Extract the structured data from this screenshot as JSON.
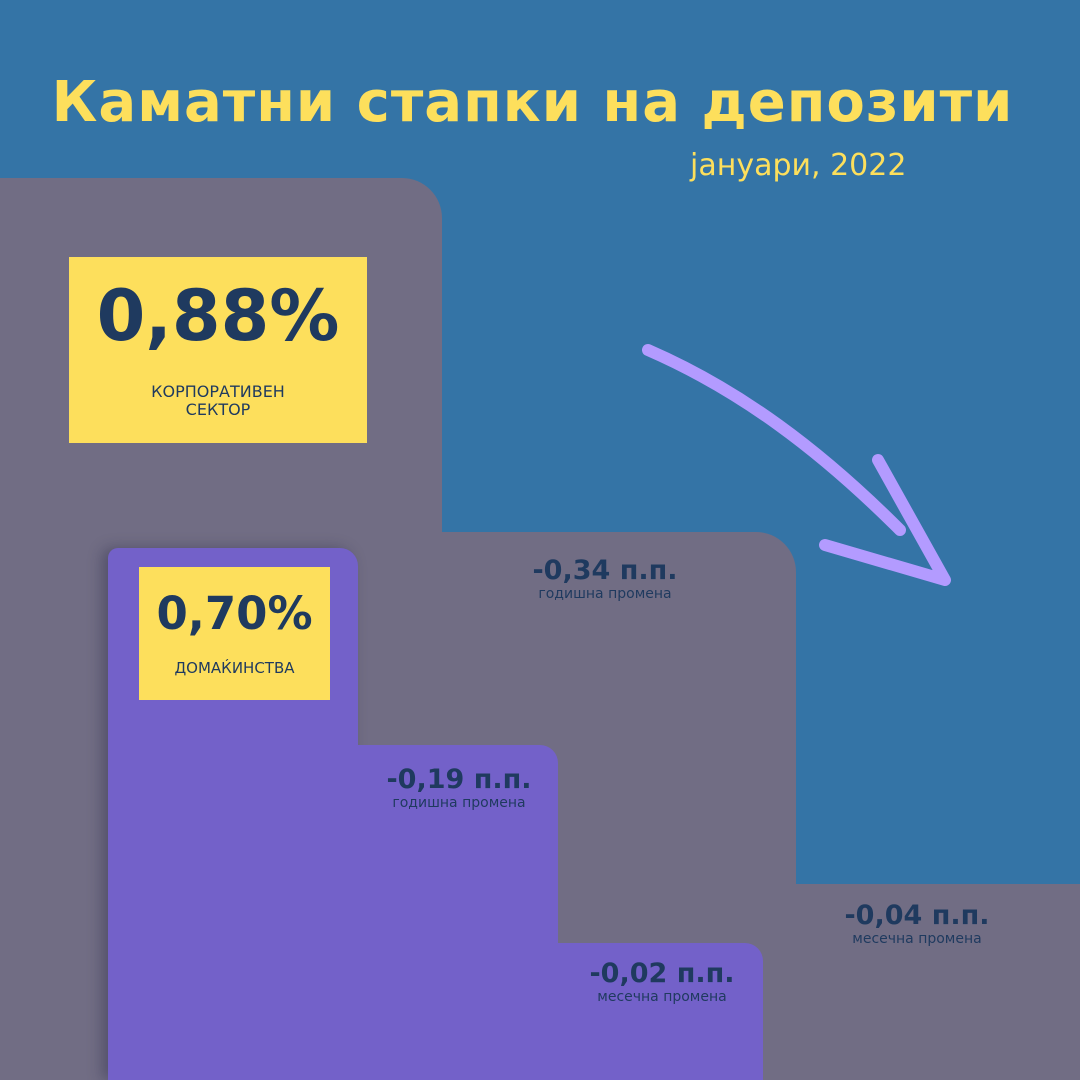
{
  "title": "Каматни стапки на депозити",
  "subtitle": "јануари, 2022",
  "corporate": {
    "value": "0,88%",
    "label_line1": "КОРПОРАТИВЕН",
    "label_line2": "СЕКТОР",
    "annual_change": "-0,34 п.п.",
    "annual_label": "годишна промена",
    "monthly_change": "-0,04 п.п.",
    "monthly_label": "месечна промена"
  },
  "households": {
    "value": "0,70%",
    "label": "ДОМАЌИНСТВА",
    "annual_change": "-0,19 п.п.",
    "annual_label": "годишна промена",
    "monthly_change": "-0,02 п.п.",
    "monthly_label": "месечна промена"
  },
  "colors": {
    "background": "#3474a6",
    "gray_steps": "#716d84",
    "purple_steps": "#7361c9",
    "yellow": "#fddf5c",
    "navy_text": "#1f3a5f",
    "arrow": "#b39bff"
  },
  "icons": {
    "arrow": "down-right-arrow-icon"
  }
}
